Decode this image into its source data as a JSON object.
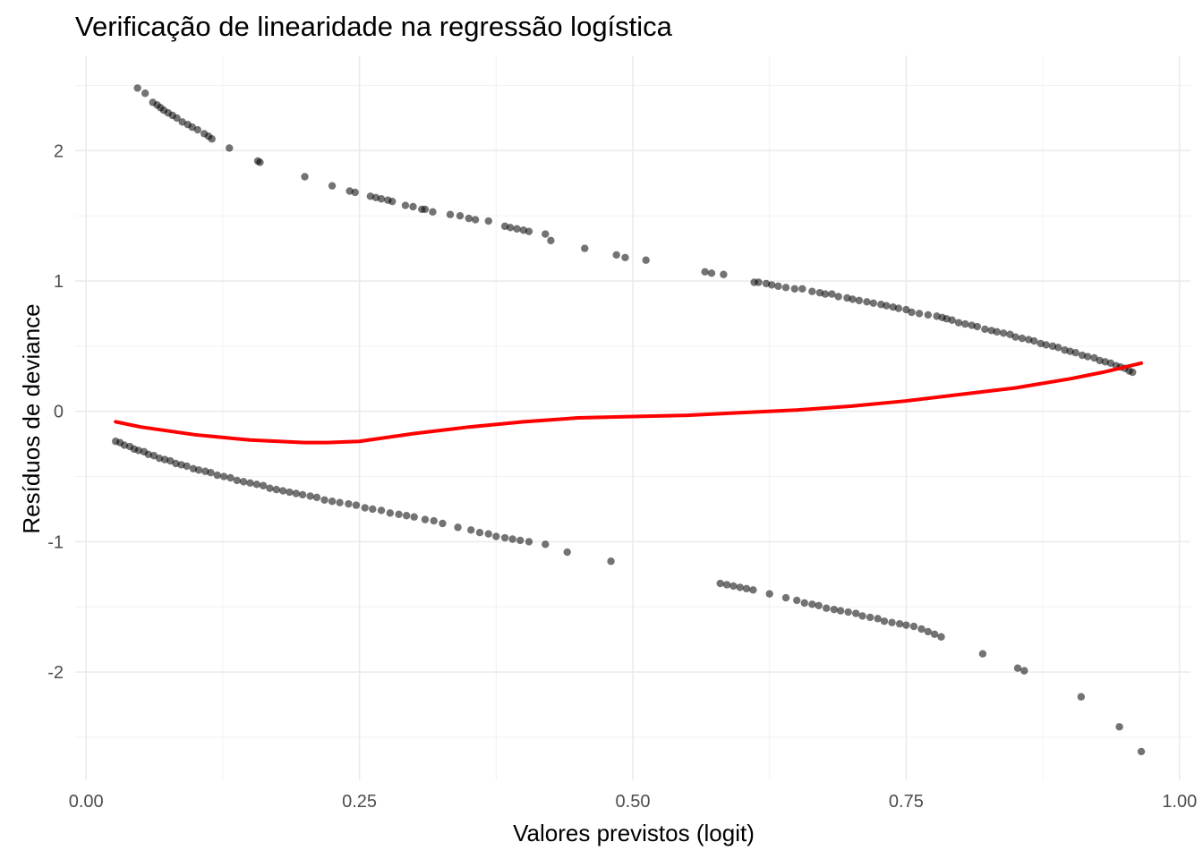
{
  "chart_data": {
    "type": "scatter",
    "title": "Verificação de linearidade na regressão logística",
    "xlabel": "Valores previstos (logit)",
    "ylabel": "Resíduos de deviance",
    "xlim": [
      -0.01,
      1.01
    ],
    "ylim": [
      -2.83,
      2.73
    ],
    "x_ticks": [
      0.0,
      0.25,
      0.5,
      0.75,
      1.0
    ],
    "x_tick_labels": [
      "0.00",
      "0.25",
      "0.50",
      "0.75",
      "1.00"
    ],
    "y_ticks": [
      -2,
      -1,
      0,
      1,
      2
    ],
    "y_tick_labels": [
      "-2",
      "-1",
      "0",
      "1",
      "2"
    ],
    "grid": true,
    "colors": {
      "points": "#000000",
      "smooth": "#ff0000",
      "grid": "#ebebeb"
    },
    "series": [
      {
        "type": "scatter",
        "points": [
          [
            0.047,
            2.48
          ],
          [
            0.054,
            2.44
          ],
          [
            0.061,
            2.37
          ],
          [
            0.065,
            2.35
          ],
          [
            0.068,
            2.33
          ],
          [
            0.071,
            2.31
          ],
          [
            0.075,
            2.29
          ],
          [
            0.079,
            2.27
          ],
          [
            0.083,
            2.25
          ],
          [
            0.088,
            2.22
          ],
          [
            0.093,
            2.2
          ],
          [
            0.097,
            2.18
          ],
          [
            0.102,
            2.16
          ],
          [
            0.108,
            2.13
          ],
          [
            0.112,
            2.11
          ],
          [
            0.115,
            2.09
          ],
          [
            0.131,
            2.02
          ],
          [
            0.157,
            1.92
          ],
          [
            0.159,
            1.91
          ],
          [
            0.2,
            1.8
          ],
          [
            0.225,
            1.73
          ],
          [
            0.241,
            1.69
          ],
          [
            0.246,
            1.68
          ],
          [
            0.26,
            1.65
          ],
          [
            0.265,
            1.64
          ],
          [
            0.27,
            1.63
          ],
          [
            0.276,
            1.62
          ],
          [
            0.28,
            1.61
          ],
          [
            0.292,
            1.58
          ],
          [
            0.299,
            1.57
          ],
          [
            0.307,
            1.55
          ],
          [
            0.31,
            1.55
          ],
          [
            0.317,
            1.53
          ],
          [
            0.333,
            1.51
          ],
          [
            0.342,
            1.5
          ],
          [
            0.35,
            1.48
          ],
          [
            0.356,
            1.47
          ],
          [
            0.368,
            1.46
          ],
          [
            0.383,
            1.42
          ],
          [
            0.388,
            1.41
          ],
          [
            0.394,
            1.4
          ],
          [
            0.4,
            1.39
          ],
          [
            0.405,
            1.38
          ],
          [
            0.42,
            1.36
          ],
          [
            0.425,
            1.31
          ],
          [
            0.456,
            1.25
          ],
          [
            0.485,
            1.2
          ],
          [
            0.493,
            1.18
          ],
          [
            0.512,
            1.16
          ],
          [
            0.566,
            1.07
          ],
          [
            0.572,
            1.06
          ],
          [
            0.583,
            1.05
          ],
          [
            0.611,
            0.99
          ],
          [
            0.615,
            0.99
          ],
          [
            0.622,
            0.98
          ],
          [
            0.627,
            0.97
          ],
          [
            0.633,
            0.96
          ],
          [
            0.64,
            0.95
          ],
          [
            0.648,
            0.94
          ],
          [
            0.655,
            0.94
          ],
          [
            0.664,
            0.92
          ],
          [
            0.671,
            0.91
          ],
          [
            0.676,
            0.9
          ],
          [
            0.682,
            0.9
          ],
          [
            0.688,
            0.88
          ],
          [
            0.696,
            0.87
          ],
          [
            0.701,
            0.86
          ],
          [
            0.707,
            0.85
          ],
          [
            0.714,
            0.84
          ],
          [
            0.72,
            0.83
          ],
          [
            0.727,
            0.82
          ],
          [
            0.732,
            0.81
          ],
          [
            0.738,
            0.8
          ],
          [
            0.743,
            0.79
          ],
          [
            0.75,
            0.78
          ],
          [
            0.755,
            0.76
          ],
          [
            0.762,
            0.75
          ],
          [
            0.77,
            0.74
          ],
          [
            0.778,
            0.73
          ],
          [
            0.783,
            0.72
          ],
          [
            0.787,
            0.71
          ],
          [
            0.792,
            0.7
          ],
          [
            0.798,
            0.68
          ],
          [
            0.804,
            0.67
          ],
          [
            0.81,
            0.66
          ],
          [
            0.815,
            0.65
          ],
          [
            0.822,
            0.63
          ],
          [
            0.828,
            0.62
          ],
          [
            0.833,
            0.61
          ],
          [
            0.839,
            0.6
          ],
          [
            0.845,
            0.59
          ],
          [
            0.85,
            0.57
          ],
          [
            0.856,
            0.56
          ],
          [
            0.862,
            0.55
          ],
          [
            0.867,
            0.54
          ],
          [
            0.873,
            0.52
          ],
          [
            0.878,
            0.51
          ],
          [
            0.884,
            0.5
          ],
          [
            0.889,
            0.49
          ],
          [
            0.895,
            0.47
          ],
          [
            0.9,
            0.46
          ],
          [
            0.905,
            0.45
          ],
          [
            0.911,
            0.43
          ],
          [
            0.916,
            0.42
          ],
          [
            0.922,
            0.41
          ],
          [
            0.927,
            0.39
          ],
          [
            0.932,
            0.38
          ],
          [
            0.937,
            0.37
          ],
          [
            0.942,
            0.35
          ],
          [
            0.946,
            0.34
          ],
          [
            0.95,
            0.33
          ],
          [
            0.954,
            0.31
          ],
          [
            0.957,
            0.3
          ],
          [
            0.027,
            -0.23
          ],
          [
            0.031,
            -0.24
          ],
          [
            0.035,
            -0.26
          ],
          [
            0.04,
            -0.27
          ],
          [
            0.044,
            -0.29
          ],
          [
            0.048,
            -0.3
          ],
          [
            0.053,
            -0.31
          ],
          [
            0.057,
            -0.33
          ],
          [
            0.062,
            -0.34
          ],
          [
            0.067,
            -0.36
          ],
          [
            0.072,
            -0.37
          ],
          [
            0.077,
            -0.38
          ],
          [
            0.082,
            -0.4
          ],
          [
            0.087,
            -0.41
          ],
          [
            0.092,
            -0.42
          ],
          [
            0.098,
            -0.44
          ],
          [
            0.103,
            -0.45
          ],
          [
            0.109,
            -0.46
          ],
          [
            0.114,
            -0.47
          ],
          [
            0.12,
            -0.49
          ],
          [
            0.126,
            -0.5
          ],
          [
            0.132,
            -0.51
          ],
          [
            0.138,
            -0.53
          ],
          [
            0.144,
            -0.54
          ],
          [
            0.15,
            -0.55
          ],
          [
            0.156,
            -0.56
          ],
          [
            0.162,
            -0.57
          ],
          [
            0.168,
            -0.59
          ],
          [
            0.174,
            -0.6
          ],
          [
            0.18,
            -0.61
          ],
          [
            0.186,
            -0.62
          ],
          [
            0.192,
            -0.63
          ],
          [
            0.198,
            -0.64
          ],
          [
            0.205,
            -0.65
          ],
          [
            0.211,
            -0.66
          ],
          [
            0.218,
            -0.68
          ],
          [
            0.225,
            -0.69
          ],
          [
            0.232,
            -0.7
          ],
          [
            0.24,
            -0.71
          ],
          [
            0.247,
            -0.72
          ],
          [
            0.255,
            -0.74
          ],
          [
            0.262,
            -0.75
          ],
          [
            0.27,
            -0.76
          ],
          [
            0.278,
            -0.78
          ],
          [
            0.286,
            -0.79
          ],
          [
            0.293,
            -0.8
          ],
          [
            0.3,
            -0.81
          ],
          [
            0.31,
            -0.83
          ],
          [
            0.318,
            -0.84
          ],
          [
            0.326,
            -0.86
          ],
          [
            0.34,
            -0.89
          ],
          [
            0.352,
            -0.91
          ],
          [
            0.36,
            -0.93
          ],
          [
            0.368,
            -0.94
          ],
          [
            0.375,
            -0.96
          ],
          [
            0.383,
            -0.97
          ],
          [
            0.39,
            -0.98
          ],
          [
            0.397,
            -0.99
          ],
          [
            0.405,
            -1.0
          ],
          [
            0.42,
            -1.02
          ],
          [
            0.44,
            -1.08
          ],
          [
            0.48,
            -1.15
          ],
          [
            0.58,
            -1.32
          ],
          [
            0.586,
            -1.33
          ],
          [
            0.592,
            -1.34
          ],
          [
            0.598,
            -1.35
          ],
          [
            0.604,
            -1.36
          ],
          [
            0.61,
            -1.37
          ],
          [
            0.625,
            -1.4
          ],
          [
            0.64,
            -1.43
          ],
          [
            0.65,
            -1.45
          ],
          [
            0.657,
            -1.47
          ],
          [
            0.664,
            -1.48
          ],
          [
            0.67,
            -1.49
          ],
          [
            0.677,
            -1.51
          ],
          [
            0.684,
            -1.52
          ],
          [
            0.69,
            -1.53
          ],
          [
            0.697,
            -1.54
          ],
          [
            0.704,
            -1.55
          ],
          [
            0.71,
            -1.57
          ],
          [
            0.717,
            -1.58
          ],
          [
            0.724,
            -1.59
          ],
          [
            0.73,
            -1.61
          ],
          [
            0.737,
            -1.62
          ],
          [
            0.744,
            -1.63
          ],
          [
            0.75,
            -1.64
          ],
          [
            0.757,
            -1.65
          ],
          [
            0.764,
            -1.67
          ],
          [
            0.77,
            -1.69
          ],
          [
            0.776,
            -1.71
          ],
          [
            0.782,
            -1.73
          ],
          [
            0.82,
            -1.86
          ],
          [
            0.852,
            -1.97
          ],
          [
            0.858,
            -1.99
          ],
          [
            0.91,
            -2.19
          ],
          [
            0.945,
            -2.42
          ],
          [
            0.965,
            -2.61
          ]
        ]
      },
      {
        "type": "line",
        "points": [
          [
            0.027,
            -0.08
          ],
          [
            0.05,
            -0.12
          ],
          [
            0.1,
            -0.18
          ],
          [
            0.15,
            -0.22
          ],
          [
            0.2,
            -0.24
          ],
          [
            0.22,
            -0.24
          ],
          [
            0.25,
            -0.23
          ],
          [
            0.3,
            -0.17
          ],
          [
            0.35,
            -0.12
          ],
          [
            0.4,
            -0.08
          ],
          [
            0.45,
            -0.05
          ],
          [
            0.5,
            -0.04
          ],
          [
            0.55,
            -0.03
          ],
          [
            0.6,
            -0.01
          ],
          [
            0.65,
            0.01
          ],
          [
            0.7,
            0.04
          ],
          [
            0.75,
            0.08
          ],
          [
            0.8,
            0.13
          ],
          [
            0.85,
            0.18
          ],
          [
            0.9,
            0.25
          ],
          [
            0.93,
            0.3
          ],
          [
            0.965,
            0.37
          ]
        ]
      }
    ]
  }
}
